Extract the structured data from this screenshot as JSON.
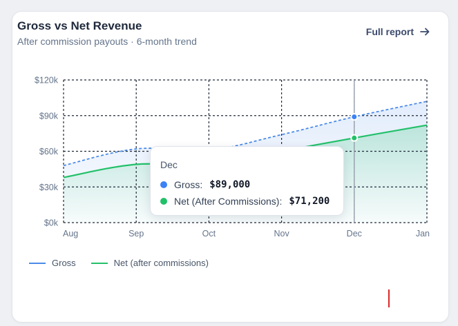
{
  "header": {
    "title": "Gross vs Net Revenue",
    "subtitle": "After commission payouts · 6-month trend",
    "report_link": "Full report"
  },
  "icons": {
    "report_link": "arrow-right-icon"
  },
  "colors": {
    "gross": "#4a8ae8",
    "net": "#22c069",
    "grid": "#1f2937",
    "axis_text": "#64748b",
    "marker": "#dc2626"
  },
  "chart_data": {
    "type": "area",
    "categories": [
      "Aug",
      "Sep",
      "Oct",
      "Nov",
      "Dec",
      "Jan"
    ],
    "series": [
      {
        "name": "Gross",
        "values": [
          48000,
          62000,
          61000,
          74000,
          89000,
          102000
        ]
      },
      {
        "name": "Net (After Commissions)",
        "values": [
          38000,
          49000,
          48000,
          60000,
          71200,
          82000
        ]
      }
    ],
    "y_ticks": [
      "$0k",
      "$30k",
      "$60k",
      "$90k",
      "$120k"
    ],
    "ylim": [
      0,
      120000
    ],
    "grid": true,
    "legend": {
      "position": "bottom-left",
      "items": [
        "Gross",
        "Net (after commissions)"
      ]
    },
    "tooltip": {
      "category": "Dec",
      "rows": [
        {
          "label": "Gross:",
          "value": "$89,000"
        },
        {
          "label": "Net (After Commissions):",
          "value": "$71,200"
        }
      ]
    }
  }
}
